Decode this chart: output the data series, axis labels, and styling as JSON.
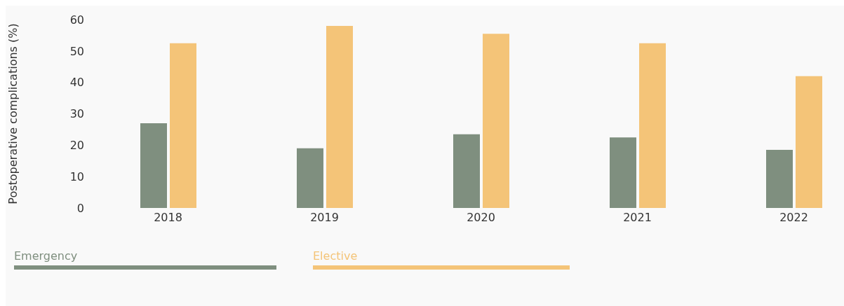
{
  "chart_data": {
    "type": "bar",
    "ylabel": "Postoperative complications (%)",
    "categories": [
      "2018",
      "2019",
      "2020",
      "2021",
      "2022"
    ],
    "series": [
      {
        "name": "Emergency",
        "color": "#7f8f7f",
        "values": [
          27,
          19,
          23.5,
          22.5,
          18.5
        ]
      },
      {
        "name": "Elective",
        "color": "#f4c478",
        "values": [
          52.5,
          58,
          55.5,
          52.5,
          42
        ]
      }
    ],
    "ylim": [
      0,
      60
    ],
    "yticks": [
      0,
      10,
      20,
      30,
      40,
      50,
      60
    ],
    "grid": false,
    "legend": "bottom"
  }
}
